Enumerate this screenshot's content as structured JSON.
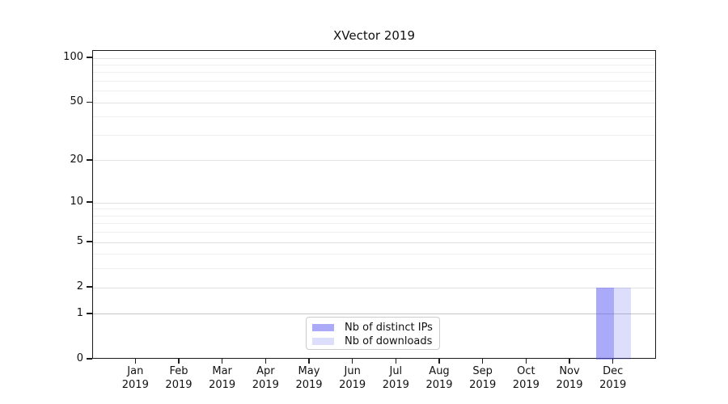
{
  "chart_data": {
    "type": "bar",
    "title": "XVector 2019",
    "categories": [
      "Jan",
      "Feb",
      "Mar",
      "Apr",
      "May",
      "Jun",
      "Jul",
      "Aug",
      "Sep",
      "Oct",
      "Nov",
      "Dec"
    ],
    "category_year": "2019",
    "series": [
      {
        "name": "Nb of distinct IPs",
        "color": "rgba(85,85,242,0.5)",
        "values": [
          0,
          0,
          0,
          0,
          0,
          0,
          0,
          0,
          0,
          0,
          0,
          2
        ]
      },
      {
        "name": "Nb of downloads",
        "color": "rgba(85,85,242,0.2)",
        "values": [
          0,
          0,
          0,
          0,
          0,
          0,
          0,
          0,
          0,
          0,
          0,
          2
        ]
      }
    ],
    "yscale": "log1p",
    "ylim": [
      0,
      112
    ],
    "yticks": [
      0,
      1,
      2,
      5,
      10,
      20,
      50,
      100
    ],
    "yticks_minor": [
      3,
      4,
      6,
      7,
      8,
      9,
      30,
      40,
      60,
      70,
      80,
      90
    ],
    "grid": "horizontal-only",
    "legend_position": "lower-center"
  }
}
